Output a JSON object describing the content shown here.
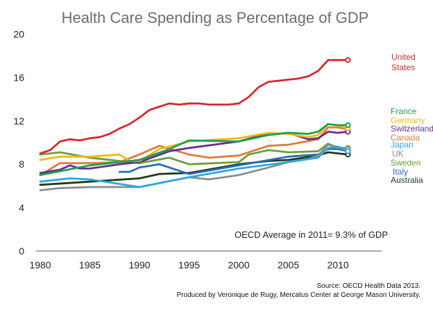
{
  "chart_data": {
    "type": "line",
    "title": "Health Care Spending as Percentage of GDP",
    "xlabel": "",
    "ylabel": "",
    "xlim": [
      1980,
      2013
    ],
    "ylim": [
      0,
      20
    ],
    "x_ticks": [
      1980,
      1985,
      1990,
      1995,
      2000,
      2005,
      2010
    ],
    "y_ticks": [
      0,
      4,
      8,
      12,
      16,
      20
    ],
    "annotation": "OECD Average in 2011= 9.3% of GDP",
    "source_line1": "Source: OECD Health Data 2013.",
    "source_line2": "Produced by Veronique de Rugy, Mercatus Center at George Mason University.",
    "series": [
      {
        "name": "United States",
        "label_lines": [
          "United",
          "States"
        ],
        "color": "#d7282f",
        "x": [
          1980,
          1981,
          1982,
          1983,
          1984,
          1985,
          1986,
          1987,
          1988,
          1989,
          1990,
          1991,
          1992,
          1993,
          1994,
          1995,
          1996,
          1997,
          1998,
          1999,
          2000,
          2001,
          2002,
          2003,
          2004,
          2005,
          2006,
          2007,
          2008,
          2009,
          2010,
          2011
        ],
        "values": [
          9.0,
          9.3,
          10.1,
          10.3,
          10.2,
          10.4,
          10.5,
          10.8,
          11.3,
          11.7,
          12.3,
          13.0,
          13.3,
          13.6,
          13.5,
          13.6,
          13.6,
          13.5,
          13.5,
          13.5,
          13.6,
          14.2,
          15.1,
          15.6,
          15.7,
          15.8,
          15.9,
          16.1,
          16.6,
          17.6,
          17.6,
          17.6
        ]
      },
      {
        "name": "France",
        "label_lines": [
          "France"
        ],
        "color": "#1aa34a",
        "x": [
          1980,
          1985,
          1990,
          1993,
          1995,
          2000,
          2003,
          2005,
          2007,
          2008,
          2009,
          2010,
          2011
        ],
        "values": [
          7.0,
          7.9,
          8.4,
          9.4,
          10.2,
          10.1,
          10.7,
          10.9,
          10.8,
          11.0,
          11.7,
          11.6,
          11.6
        ]
      },
      {
        "name": "Germany",
        "label_lines": [
          "Germany"
        ],
        "color": "#f2b817",
        "x": [
          1980,
          1982,
          1985,
          1988,
          1989,
          1990,
          1992,
          1995,
          2000,
          2003,
          2005,
          2007,
          2008,
          2009,
          2010,
          2011
        ],
        "values": [
          8.4,
          8.7,
          8.7,
          8.9,
          8.3,
          8.3,
          9.4,
          10.1,
          10.4,
          10.9,
          10.8,
          10.5,
          10.7,
          11.7,
          11.6,
          11.3
        ]
      },
      {
        "name": "Switzerland",
        "label_lines": [
          "Switzerland"
        ],
        "color": "#6a2d8f",
        "x": [
          1980,
          1982,
          1983,
          1984,
          1985,
          1988,
          1990,
          1993,
          1995,
          2000,
          2002,
          2005,
          2007,
          2008,
          2009,
          2010,
          2011
        ],
        "values": [
          7.2,
          7.5,
          7.9,
          7.6,
          7.6,
          8.0,
          8.2,
          9.2,
          9.5,
          10.1,
          10.6,
          10.9,
          10.3,
          10.4,
          11.0,
          10.9,
          11.0
        ]
      },
      {
        "name": "Canada",
        "label_lines": [
          "Canada"
        ],
        "color": "#e07b39",
        "x": [
          1980,
          1982,
          1985,
          1988,
          1990,
          1992,
          1995,
          1997,
          2000,
          2003,
          2005,
          2008,
          2009,
          2010,
          2011
        ],
        "values": [
          7.0,
          8.1,
          8.1,
          8.2,
          8.9,
          9.7,
          8.9,
          8.6,
          8.8,
          9.7,
          9.8,
          10.3,
          11.4,
          11.4,
          11.2
        ]
      },
      {
        "name": "Japan",
        "label_lines": [
          "Japan"
        ],
        "color": "#2aa9e0",
        "x": [
          1980,
          1983,
          1985,
          1990,
          1995,
          2000,
          2005,
          2008,
          2009,
          2010,
          2011
        ],
        "values": [
          6.4,
          6.7,
          6.6,
          5.9,
          6.8,
          7.6,
          8.2,
          8.6,
          9.5,
          9.6,
          9.2
        ]
      },
      {
        "name": "UK",
        "label_lines": [
          "UK"
        ],
        "color": "#8c8c8c",
        "x": [
          1980,
          1982,
          1985,
          1990,
          1995,
          1997,
          2000,
          2003,
          2005,
          2007,
          2008,
          2009,
          2010,
          2011
        ],
        "values": [
          5.6,
          5.8,
          5.9,
          5.9,
          6.8,
          6.6,
          7.0,
          7.7,
          8.2,
          8.5,
          8.8,
          9.8,
          9.6,
          9.4
        ]
      },
      {
        "name": "Sweden",
        "label_lines": [
          "Sweden"
        ],
        "color": "#6e9e3a",
        "x": [
          1980,
          1982,
          1985,
          1990,
          1993,
          1995,
          2000,
          2001,
          2003,
          2005,
          2008,
          2009,
          2010,
          2011
        ],
        "values": [
          8.9,
          9.1,
          8.6,
          8.1,
          8.6,
          8.0,
          8.2,
          8.9,
          9.3,
          9.1,
          9.2,
          9.9,
          9.5,
          9.5
        ]
      },
      {
        "name": "Italy",
        "label_lines": [
          "Italy"
        ],
        "color": "#2b6cb5",
        "x": [
          1988,
          1989,
          1990,
          1992,
          1995,
          2000,
          2005,
          2008,
          2009,
          2010,
          2011
        ],
        "values": [
          7.3,
          7.3,
          7.7,
          8.0,
          7.1,
          7.9,
          8.7,
          8.9,
          9.4,
          9.4,
          9.2
        ]
      },
      {
        "name": "Australia",
        "label_lines": [
          "Australia"
        ],
        "color": "#1e3a1e",
        "x": [
          1980,
          1985,
          1990,
          1992,
          1995,
          2000,
          2003,
          2005,
          2008,
          2009,
          2010,
          2011
        ],
        "values": [
          6.1,
          6.4,
          6.7,
          7.1,
          7.2,
          8.0,
          8.3,
          8.4,
          8.8,
          9.1,
          9.0,
          8.9
        ]
      }
    ]
  }
}
